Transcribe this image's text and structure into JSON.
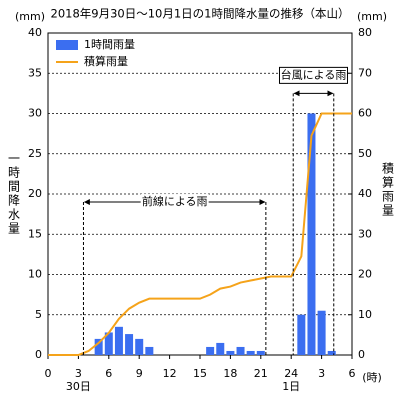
{
  "chart_data": {
    "type": "bar",
    "title": "2018年9月30日～10月1日の1時間降水量の推移（本山）",
    "y_label": "一時間降水量",
    "y2_label": "積算雨量",
    "y_unit": "(mm)",
    "y2_unit": "(mm)",
    "x_unit": "(時)",
    "xlim": [
      0,
      30
    ],
    "xticks": [
      0,
      3,
      6,
      9,
      12,
      15,
      18,
      21,
      24,
      {
        "value": 27,
        "label": "3"
      },
      {
        "value": 30,
        "label": "6"
      }
    ],
    "date_labels": [
      {
        "x": 3,
        "label": "30日"
      },
      {
        "x": 24,
        "label": "1日"
      }
    ],
    "ylim": [
      0,
      40
    ],
    "yticks": [
      0,
      5,
      10,
      15,
      20,
      25,
      30,
      35,
      40
    ],
    "y2lim": [
      0,
      80
    ],
    "y2ticks": [
      0,
      10,
      20,
      30,
      40,
      50,
      60,
      70,
      80
    ],
    "grid": true,
    "legend": "upper left",
    "series": [
      {
        "name": "1時間雨量",
        "type": "bar",
        "color": "#3b6ef0",
        "x": [
          5,
          6,
          7,
          8,
          9,
          10,
          16,
          17,
          18,
          19,
          20,
          21,
          25,
          26,
          27,
          28
        ],
        "values": [
          2,
          2.8,
          3.5,
          2.6,
          2,
          1,
          1,
          1.5,
          0.5,
          1,
          0.5,
          0.5,
          5,
          30,
          5.5,
          0.5
        ]
      },
      {
        "name": "積算雨量",
        "type": "line",
        "axis": "y2",
        "color": "#f5a31a",
        "x": [
          0,
          3,
          4,
          5,
          6,
          7,
          8,
          9,
          10,
          15,
          16,
          17,
          18,
          19,
          20,
          21,
          22,
          24,
          25,
          26,
          27,
          28,
          30
        ],
        "values": [
          0,
          0,
          1,
          3,
          5.5,
          9,
          11.5,
          13,
          14,
          14,
          15,
          16.5,
          17,
          18,
          18.5,
          19,
          19.5,
          19.5,
          24.5,
          54.5,
          60,
          60,
          60
        ]
      }
    ],
    "annotations": [
      {
        "text": "前線による雨",
        "x_start": 3.5,
        "x_end": 21.5,
        "y": 19,
        "boxed": false
      },
      {
        "text": "台風による雨",
        "x_start": 24.2,
        "x_end": 28.2,
        "y": 32.5,
        "boxed": true
      }
    ]
  }
}
